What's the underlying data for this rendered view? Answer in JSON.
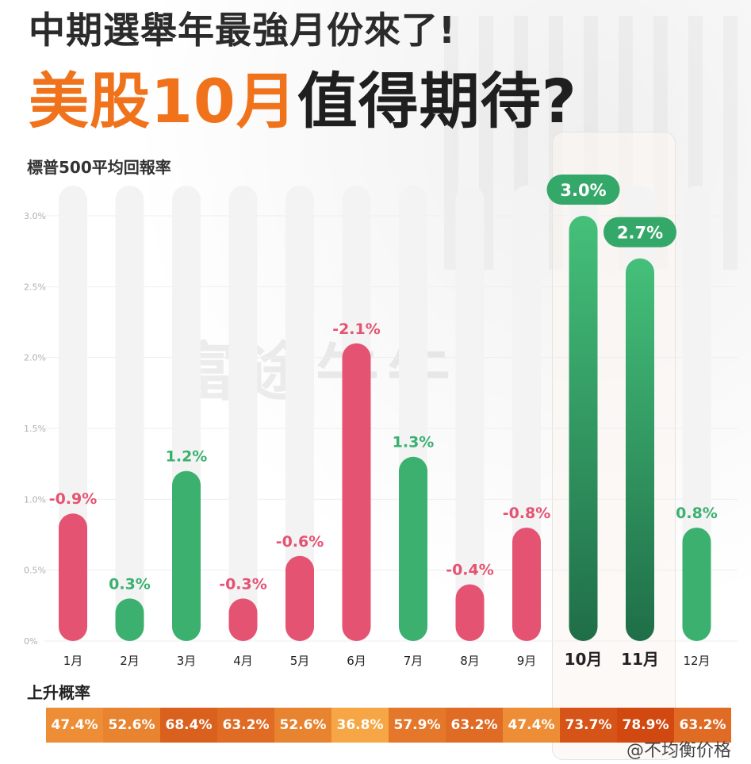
{
  "title_line1": "中期選舉年最強月份來了!",
  "title_line2_orange": "美股10月",
  "title_line2_dark": "值得期待?",
  "watermark_text": "富途牛牛",
  "credit_text": "@不均衡价格",
  "colors": {
    "positive": "#3bb06f",
    "negative": "#e55372",
    "accent": "#f0731c",
    "track": "#f3f3f3"
  },
  "chart_data": {
    "type": "bar",
    "title": "",
    "ylabel": "標普500平均回報率",
    "xlabel": "",
    "ylim": [
      0,
      3.0
    ],
    "y_ticks": [
      "0%",
      "0.5%",
      "1.0%",
      "1.5%",
      "2.0%",
      "2.5%",
      "3.0%"
    ],
    "categories": [
      "1月",
      "2月",
      "3月",
      "4月",
      "5月",
      "6月",
      "7月",
      "8月",
      "9月",
      "10月",
      "11月",
      "12月"
    ],
    "values": [
      -0.9,
      0.3,
      1.2,
      -0.3,
      -0.6,
      -2.1,
      1.3,
      -0.4,
      -0.8,
      3.0,
      2.7,
      0.8
    ],
    "value_labels": [
      "-0.9%",
      "0.3%",
      "1.2%",
      "-0.3%",
      "-0.6%",
      "-2.1%",
      "1.3%",
      "-0.4%",
      "-0.8%",
      "3.0%",
      "2.7%",
      "0.8%"
    ],
    "highlighted": [
      "10月",
      "11月"
    ],
    "probability_label": "上升概率",
    "probabilities": [
      "47.4%",
      "52.6%",
      "68.4%",
      "63.2%",
      "52.6%",
      "36.8%",
      "57.9%",
      "63.2%",
      "47.4%",
      "73.7%",
      "78.9%",
      "63.2%"
    ]
  }
}
